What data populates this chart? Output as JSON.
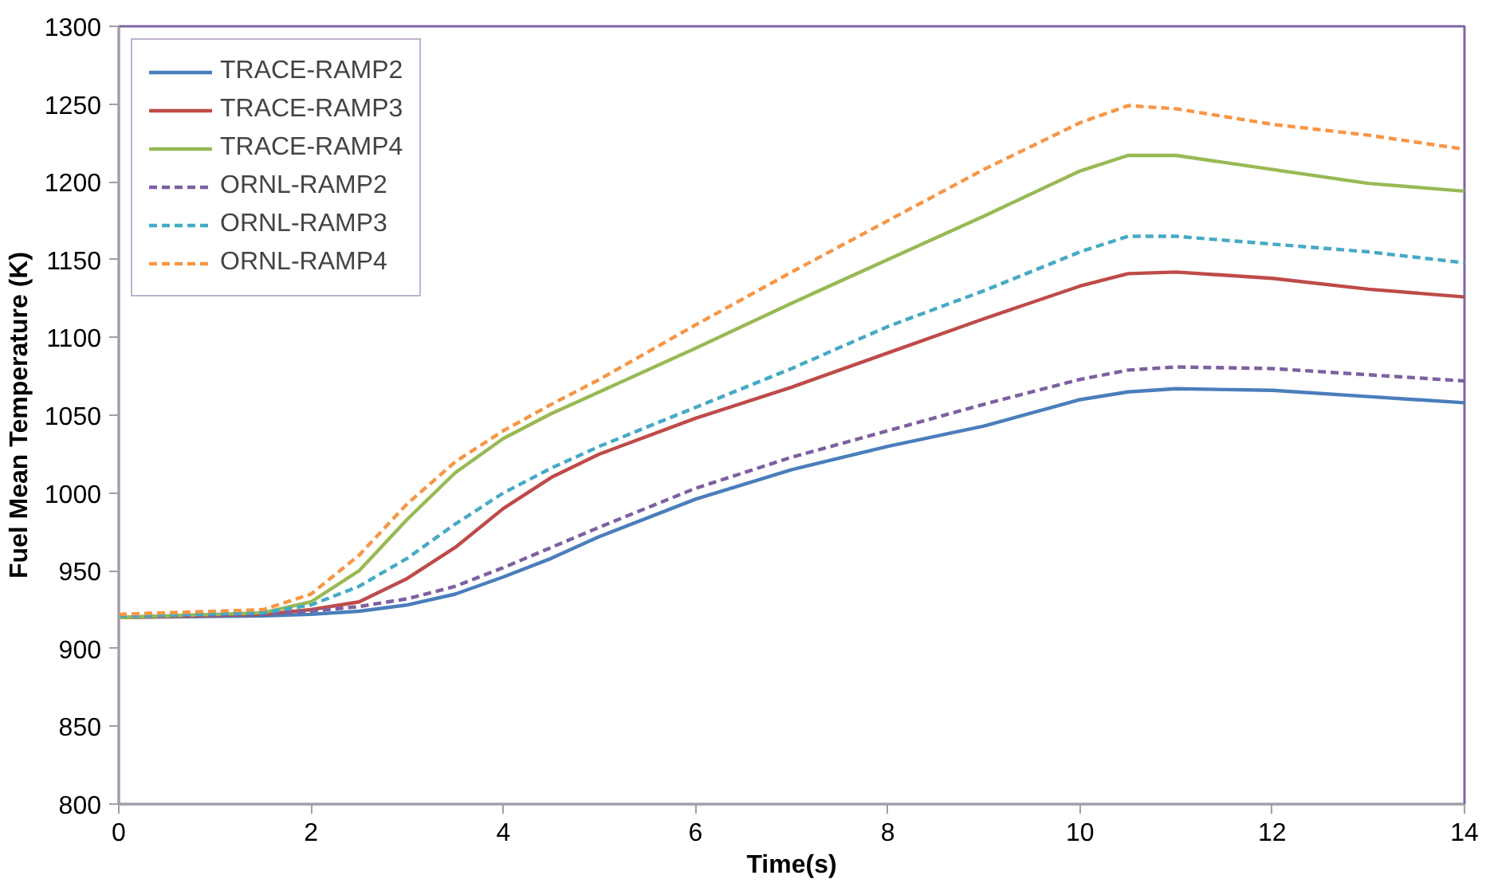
{
  "chart_data": {
    "type": "line",
    "xlabel": "Time(s)",
    "ylabel": "Fuel Mean Temperature (K)",
    "xlim": [
      0,
      14
    ],
    "xticks": [
      0,
      2,
      4,
      6,
      8,
      10,
      12,
      14
    ],
    "ylim": [
      800,
      1300
    ],
    "yticks": [
      800,
      850,
      900,
      950,
      1000,
      1050,
      1100,
      1150,
      1200,
      1250,
      1300
    ],
    "grid": false,
    "legend": "top left",
    "marker": "none",
    "x": [
      0,
      1.5,
      2,
      2.5,
      3,
      3.5,
      4,
      4.5,
      5,
      6,
      7,
      8,
      9,
      10,
      10.5,
      11,
      12,
      13,
      14
    ],
    "series": [
      {
        "name": "TRACE-RAMP2",
        "color": "#4a7ebb",
        "line_style": "solid",
        "values": [
          920,
          921,
          922,
          924,
          928,
          935,
          946,
          958,
          972,
          996,
          1015,
          1030,
          1043,
          1060,
          1065,
          1067,
          1066,
          1062,
          1058
        ]
      },
      {
        "name": "TRACE-RAMP3",
        "color": "#be4b48",
        "line_style": "solid",
        "values": [
          920,
          922,
          925,
          930,
          945,
          965,
          990,
          1010,
          1025,
          1048,
          1068,
          1090,
          1112,
          1133,
          1141,
          1142,
          1138,
          1131,
          1126
        ]
      },
      {
        "name": "TRACE-RAMP4",
        "color": "#98b954",
        "line_style": "solid",
        "values": [
          920,
          923,
          930,
          950,
          983,
          1013,
          1035,
          1051,
          1065,
          1093,
          1122,
          1150,
          1178,
          1207,
          1217,
          1217,
          1208,
          1199,
          1194
        ]
      },
      {
        "name": "ORNL-RAMP2",
        "color": "#7d60a0",
        "line_style": "dashed",
        "values": [
          921,
          922,
          924,
          927,
          932,
          940,
          952,
          965,
          978,
          1003,
          1023,
          1040,
          1057,
          1073,
          1079,
          1081,
          1080,
          1076,
          1072
        ]
      },
      {
        "name": "ORNL-RAMP3",
        "color": "#46aac5",
        "line_style": "dashed",
        "values": [
          921,
          923,
          928,
          940,
          958,
          980,
          1000,
          1016,
          1030,
          1055,
          1080,
          1107,
          1130,
          1155,
          1165,
          1165,
          1160,
          1155,
          1148
        ]
      },
      {
        "name": "ORNL-RAMP4",
        "color": "#f79646",
        "line_style": "dashed",
        "values": [
          922,
          925,
          935,
          960,
          993,
          1020,
          1040,
          1057,
          1073,
          1108,
          1142,
          1175,
          1208,
          1238,
          1249,
          1247,
          1237,
          1230,
          1221
        ]
      }
    ]
  }
}
